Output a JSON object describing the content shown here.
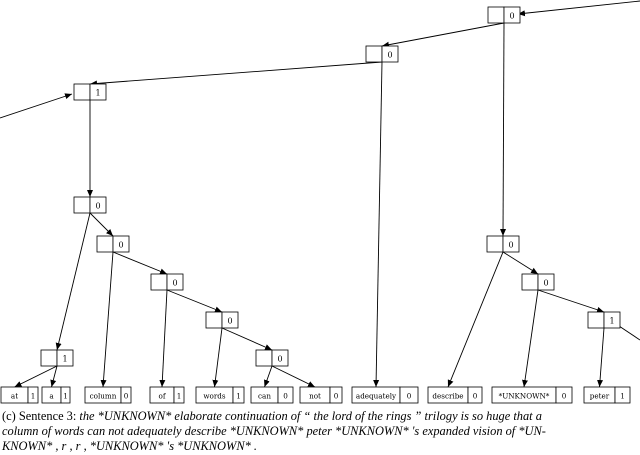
{
  "tree": {
    "internal_nodes": [
      {
        "id": "n1",
        "value": "0"
      },
      {
        "id": "n2",
        "value": "0"
      },
      {
        "id": "n3",
        "value": "1"
      },
      {
        "id": "n4",
        "value": "0"
      },
      {
        "id": "n5",
        "value": "0"
      },
      {
        "id": "n6",
        "value": "0"
      },
      {
        "id": "n7",
        "value": "0"
      },
      {
        "id": "n8",
        "value": "0"
      },
      {
        "id": "n9",
        "value": "1"
      },
      {
        "id": "n10",
        "value": "0"
      },
      {
        "id": "n11",
        "value": "0"
      },
      {
        "id": "n12",
        "value": "1"
      }
    ],
    "leaves": [
      {
        "id": "l1",
        "word": "at",
        "value": "1"
      },
      {
        "id": "l2",
        "word": "a",
        "value": "1"
      },
      {
        "id": "l3",
        "word": "column",
        "value": "0"
      },
      {
        "id": "l4",
        "word": "of",
        "value": "1"
      },
      {
        "id": "l5",
        "word": "words",
        "value": "1"
      },
      {
        "id": "l6",
        "word": "can",
        "value": "0"
      },
      {
        "id": "l7",
        "word": "not",
        "value": "0"
      },
      {
        "id": "l8",
        "word": "adequately",
        "value": "0"
      },
      {
        "id": "l9",
        "word": "describe",
        "value": "0"
      },
      {
        "id": "l10",
        "word": "*UNKNOWN*",
        "value": "0"
      },
      {
        "id": "l11",
        "word": "peter",
        "value": "1"
      }
    ],
    "edges": [
      [
        "n1",
        "n2"
      ],
      [
        "n2",
        "n3"
      ],
      [
        "n2",
        "l8"
      ],
      [
        "n1",
        "n10"
      ],
      [
        "n3",
        "n4"
      ],
      [
        "n4",
        "n9"
      ],
      [
        "n4",
        "n5"
      ],
      [
        "n9",
        "l1"
      ],
      [
        "n9",
        "l2"
      ],
      [
        "n5",
        "l3"
      ],
      [
        "n5",
        "n6"
      ],
      [
        "n6",
        "l4"
      ],
      [
        "n6",
        "n7"
      ],
      [
        "n7",
        "l5"
      ],
      [
        "n7",
        "n8"
      ],
      [
        "n8",
        "l6"
      ],
      [
        "n8",
        "l7"
      ],
      [
        "n10",
        "l9"
      ],
      [
        "n10",
        "n11"
      ],
      [
        "n11",
        "l10"
      ],
      [
        "n11",
        "n12"
      ],
      [
        "n12",
        "l11"
      ]
    ]
  },
  "caption": {
    "label": "(c) Sentence 3:",
    "line1": "the *UNKNOWN* elaborate continuation of “ the lord of the rings ” trilogy is so huge that a",
    "line2": "column of words can not adequately describe *UNKNOWN* peter *UNKNOWN* 's expanded vision of *UN-",
    "line3": "KNOWN* , r , r , *UNKNOWN* 's *UNKNOWN* ."
  }
}
